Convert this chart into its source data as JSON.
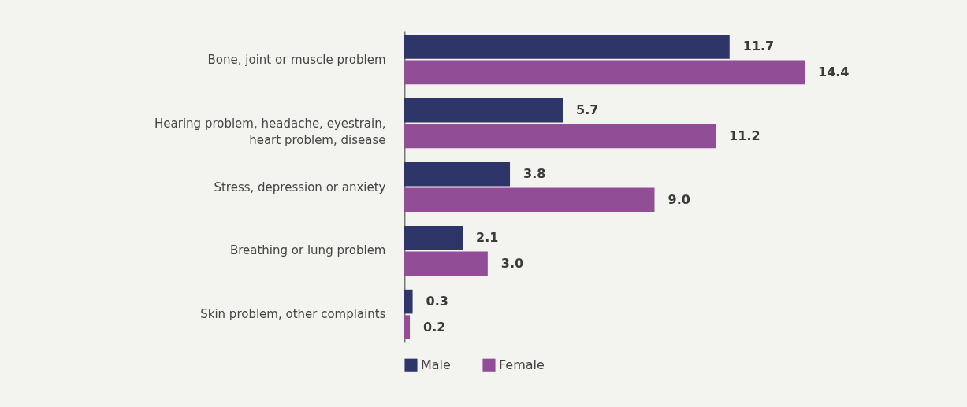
{
  "chart_data": {
    "type": "bar",
    "orientation": "horizontal",
    "categories": [
      "Bone, joint or muscle problem",
      "Hearing problem, headache, eyestrain, heart problem, disease",
      "Stress, depression or anxiety",
      "Breathing or lung problem",
      "Skin problem, other complaints"
    ],
    "series": [
      {
        "name": "Male",
        "color": "#2e3669",
        "values": [
          11.7,
          5.7,
          3.8,
          2.1,
          0.3
        ],
        "value_labels": [
          "11.7",
          "5.7",
          "3.8",
          "2.1",
          "0.3"
        ]
      },
      {
        "name": "Female",
        "color": "#914e96",
        "values": [
          14.4,
          11.2,
          9.0,
          3.0,
          0.2
        ],
        "value_labels": [
          "14.4",
          "11.2",
          "9.0",
          "3.0",
          "0.2"
        ]
      }
    ],
    "legend": "bottom",
    "tick_labels": "y"
  }
}
